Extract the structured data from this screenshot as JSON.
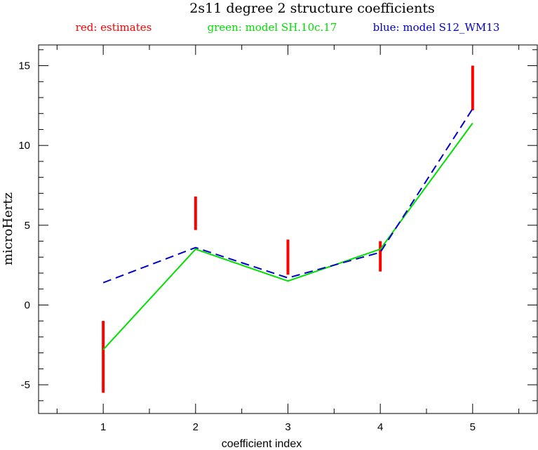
{
  "chart_data": {
    "type": "line",
    "title": "2s11 degree 2 structure coefficients",
    "xlabel": "coefficient index",
    "ylabel": "microHertz",
    "xlim": [
      0.3,
      5.7
    ],
    "ylim": [
      -6.8,
      16.3
    ],
    "x_ticks": [
      1,
      2,
      3,
      4,
      5
    ],
    "y_ticks": [
      -5,
      0,
      5,
      10,
      15
    ],
    "grid": false,
    "legend_position": "top",
    "legend": {
      "red": "red: estimates",
      "green": "green: model SH.10c.17",
      "blue": "blue: model S12_WM13"
    },
    "colors": {
      "estimates": "#ff0000",
      "green_model": "#00e000",
      "blue_model": "#0000cc"
    },
    "series": [
      {
        "name": "estimates",
        "kind": "error-bars",
        "x": [
          1,
          2,
          3,
          4,
          5
        ],
        "low": [
          -5.5,
          4.7,
          1.9,
          2.1,
          12.2
        ],
        "high": [
          -1.0,
          6.8,
          4.1,
          4.0,
          15.0
        ]
      },
      {
        "name": "model SH.10c.17",
        "kind": "solid",
        "x": [
          1,
          2,
          3,
          4,
          5
        ],
        "values": [
          -2.8,
          3.5,
          1.5,
          3.5,
          11.4
        ]
      },
      {
        "name": "model S12_WM13",
        "kind": "dashed",
        "x": [
          1,
          2,
          3,
          4,
          5
        ],
        "values": [
          1.4,
          3.6,
          1.7,
          3.3,
          12.3
        ]
      }
    ]
  }
}
